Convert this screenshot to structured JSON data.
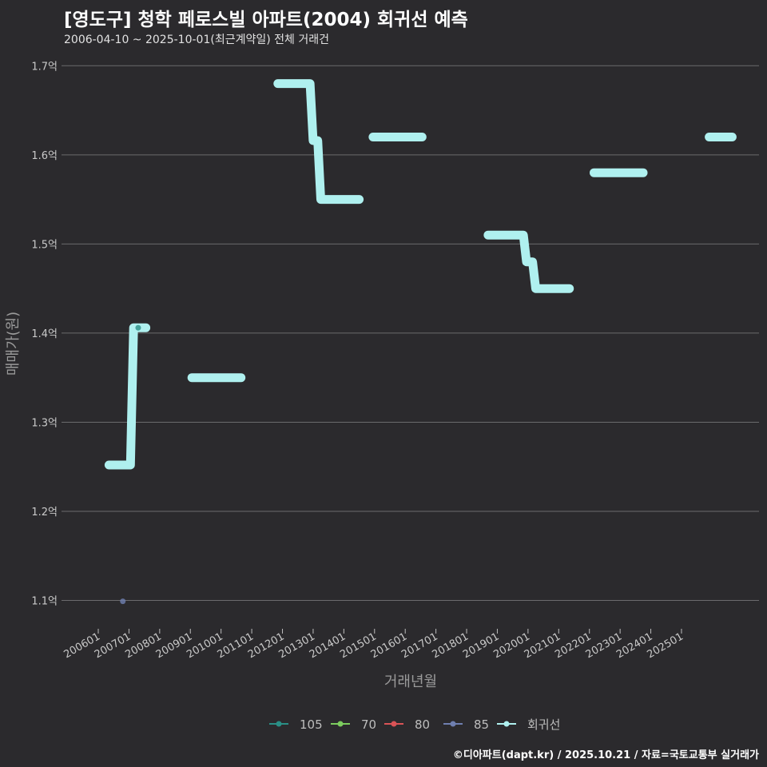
{
  "chart_data": {
    "type": "line",
    "title": "[영도구] 청학 페로스빌 아파트(2004) 회귀선 예측",
    "subtitle": "2006-04-10 ~ 2025-10-01(최근계약일) 전체 거래건",
    "xlabel": "거래년월",
    "ylabel": "매매가(원)",
    "ylim": [
      1.07,
      1.72
    ],
    "y_ticks": [
      {
        "value": 1.1,
        "label": "1.1억"
      },
      {
        "value": 1.2,
        "label": "1.2억"
      },
      {
        "value": 1.3,
        "label": "1.3억"
      },
      {
        "value": 1.4,
        "label": "1.4억"
      },
      {
        "value": 1.5,
        "label": "1.5억"
      },
      {
        "value": 1.6,
        "label": "1.6억"
      },
      {
        "value": 1.7,
        "label": "1.7억"
      }
    ],
    "x_ticks": [
      "200601",
      "200701",
      "200801",
      "200901",
      "201001",
      "201101",
      "201201",
      "201301",
      "201401",
      "201501",
      "201601",
      "201701",
      "201801",
      "201901",
      "202001",
      "202101",
      "202201",
      "202301",
      "202401",
      "202501"
    ],
    "regression_segments": [
      [
        [
          2006.35,
          1.252
        ],
        [
          2007.05,
          1.252
        ],
        [
          2007.15,
          1.406
        ],
        [
          2007.55,
          1.406
        ]
      ],
      [
        [
          2009.05,
          1.35
        ],
        [
          2010.65,
          1.35
        ]
      ],
      [
        [
          2011.85,
          1.68
        ],
        [
          2012.9,
          1.68
        ],
        [
          2013.0,
          1.616
        ],
        [
          2013.15,
          1.616
        ],
        [
          2013.25,
          1.55
        ],
        [
          2014.5,
          1.55
        ]
      ],
      [
        [
          2014.95,
          1.62
        ],
        [
          2016.55,
          1.62
        ]
      ],
      [
        [
          2018.7,
          1.51
        ],
        [
          2019.85,
          1.51
        ],
        [
          2019.95,
          1.48
        ],
        [
          2020.15,
          1.48
        ],
        [
          2020.25,
          1.45
        ],
        [
          2021.35,
          1.45
        ]
      ],
      [
        [
          2022.15,
          1.58
        ],
        [
          2023.75,
          1.58
        ]
      ],
      [
        [
          2025.9,
          1.62
        ],
        [
          2026.65,
          1.62
        ]
      ]
    ],
    "points": [
      {
        "series": "85",
        "x": 2006.8,
        "y": 1.099
      },
      {
        "series": "105",
        "x": 2007.3,
        "y": 1.406
      }
    ],
    "legend": [
      {
        "name": "105",
        "color": "#2a8f86"
      },
      {
        "name": "70",
        "color": "#7ccc5e"
      },
      {
        "name": "80",
        "color": "#d95356"
      },
      {
        "name": "85",
        "color": "#6f7fb0"
      },
      {
        "name": "회귀선",
        "color": "#aff0ef"
      }
    ],
    "regression_color": "#aff0ef",
    "legend_position": "bottom"
  },
  "footer": "©디아파트(dapt.kr) / 2025.10.21 / 자료=국토교통부 실거래가"
}
